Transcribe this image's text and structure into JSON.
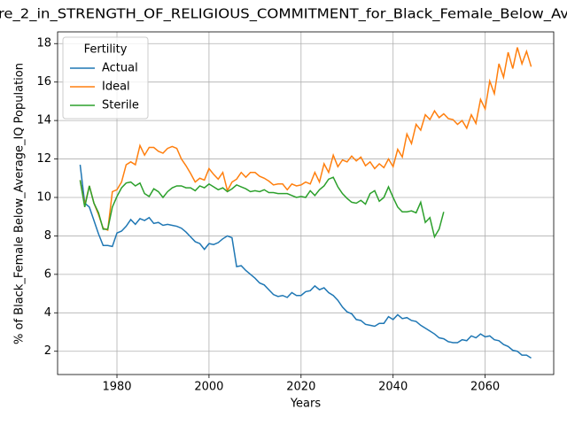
{
  "chart_data": {
    "type": "line",
    "title": "re_2_in_STRENGTH_OF_RELIGIOUS_COMMITMENT_for_Black_Female_Below_Av",
    "xlabel": "Years",
    "ylabel": "% of Black_Female Below_Average_IQ Population",
    "x": [
      1972,
      1973,
      1974,
      1975,
      1976,
      1977,
      1978,
      1979,
      1980,
      1981,
      1982,
      1983,
      1984,
      1985,
      1986,
      1987,
      1988,
      1989,
      1990,
      1991,
      1992,
      1993,
      1994,
      1995,
      1996,
      1997,
      1998,
      1999,
      2000,
      2001,
      2002,
      2003,
      2004,
      2005,
      2006,
      2007,
      2008,
      2009,
      2010,
      2011,
      2012,
      2013,
      2014,
      2015,
      2016,
      2017,
      2018,
      2019,
      2020,
      2021,
      2022,
      2023,
      2024,
      2025,
      2026,
      2027,
      2028,
      2029,
      2030,
      2031,
      2032,
      2033,
      2034,
      2035,
      2036,
      2037,
      2038,
      2039,
      2040,
      2041,
      2042,
      2043,
      2044,
      2045,
      2046,
      2047,
      2048,
      2049,
      2050,
      2051,
      2052,
      2053,
      2054,
      2055,
      2056,
      2057,
      2058,
      2059,
      2060,
      2061,
      2062,
      2063,
      2064,
      2065,
      2066,
      2067,
      2068,
      2069,
      2070
    ],
    "series": [
      {
        "name": "Actual",
        "color": "#1f77b4",
        "values": [
          11.7,
          9.7,
          9.5,
          8.8,
          8.1,
          7.5,
          7.5,
          7.45,
          8.15,
          8.25,
          8.5,
          8.85,
          8.6,
          8.9,
          8.8,
          8.95,
          8.65,
          8.7,
          8.55,
          8.6,
          8.55,
          8.5,
          8.4,
          8.2,
          7.95,
          7.7,
          7.6,
          7.3,
          7.6,
          7.55,
          7.65,
          7.85,
          8.0,
          7.9,
          6.4,
          6.45,
          6.2,
          6.0,
          5.8,
          5.55,
          5.45,
          5.2,
          4.95,
          4.85,
          4.9,
          4.8,
          5.05,
          4.9,
          4.9,
          5.1,
          5.15,
          5.4,
          5.2,
          5.3,
          5.05,
          4.9,
          4.65,
          4.3,
          4.05,
          3.95,
          3.65,
          3.6,
          3.4,
          3.35,
          3.3,
          3.45,
          3.45,
          3.8,
          3.65,
          3.9,
          3.7,
          3.75,
          3.6,
          3.55,
          3.35,
          3.2,
          3.05,
          2.9,
          2.7,
          2.65,
          2.5,
          2.45,
          2.45,
          2.6,
          2.55,
          2.8,
          2.7,
          2.9,
          2.75,
          2.8,
          2.6,
          2.55,
          2.35,
          2.25,
          2.05,
          2.0,
          1.8,
          1.8,
          1.65
        ]
      },
      {
        "name": "Ideal",
        "color": "#ff7f0e",
        "values": [
          10.9,
          9.6,
          10.6,
          9.7,
          9.1,
          8.4,
          8.3,
          10.3,
          10.4,
          10.8,
          11.7,
          11.85,
          11.7,
          12.7,
          12.2,
          12.6,
          12.6,
          12.4,
          12.3,
          12.55,
          12.65,
          12.55,
          12.0,
          11.65,
          11.25,
          10.8,
          11.0,
          10.9,
          11.5,
          11.2,
          10.95,
          11.3,
          10.35,
          10.8,
          10.95,
          11.3,
          11.05,
          11.3,
          11.3,
          11.1,
          11.0,
          10.85,
          10.65,
          10.7,
          10.7,
          10.4,
          10.7,
          10.6,
          10.65,
          10.8,
          10.7,
          11.3,
          10.8,
          11.75,
          11.3,
          12.2,
          11.6,
          11.95,
          11.85,
          12.15,
          11.9,
          12.1,
          11.65,
          11.85,
          11.5,
          11.75,
          11.55,
          12.0,
          11.6,
          12.5,
          12.1,
          13.3,
          12.8,
          13.8,
          13.5,
          14.3,
          14.05,
          14.5,
          14.15,
          14.35,
          14.1,
          14.05,
          13.8,
          14.0,
          13.6,
          14.3,
          13.85,
          15.1,
          14.6,
          16.05,
          15.4,
          16.95,
          16.25,
          17.55,
          16.7,
          17.8,
          16.95,
          17.6,
          16.8
        ]
      },
      {
        "name": "Sterile",
        "color": "#2ca02c",
        "values": [
          10.9,
          9.5,
          10.6,
          9.7,
          9.2,
          8.35,
          8.35,
          9.5,
          10.05,
          10.5,
          10.75,
          10.8,
          10.6,
          10.75,
          10.2,
          10.05,
          10.45,
          10.3,
          10.0,
          10.3,
          10.5,
          10.6,
          10.6,
          10.5,
          10.5,
          10.35,
          10.6,
          10.5,
          10.7,
          10.55,
          10.4,
          10.5,
          10.3,
          10.45,
          10.65,
          10.55,
          10.45,
          10.3,
          10.35,
          10.3,
          10.4,
          10.25,
          10.25,
          10.2,
          10.2,
          10.2,
          10.1,
          10.0,
          10.05,
          10.0,
          10.35,
          10.1,
          10.4,
          10.6,
          10.95,
          11.05,
          10.55,
          10.2,
          9.95,
          9.75,
          9.7,
          9.85,
          9.65,
          10.2,
          10.35,
          9.8,
          10.0,
          10.55,
          10.0,
          9.5,
          9.25,
          9.25,
          9.3,
          9.2,
          9.75,
          8.7,
          8.95,
          7.95,
          8.35,
          9.25,
          null,
          null,
          null,
          null,
          null,
          null,
          null,
          null,
          null,
          null,
          null,
          null,
          null,
          null,
          null,
          null,
          null,
          null,
          null
        ]
      }
    ],
    "xlim": [
      1967.1,
      2074.9
    ],
    "ylim": [
      0.79,
      18.61
    ],
    "xticks": [
      1980,
      2000,
      2020,
      2040,
      2060
    ],
    "yticks": [
      2,
      4,
      6,
      8,
      10,
      12,
      14,
      16,
      18
    ],
    "grid": true,
    "legend": {
      "title": "Fertility",
      "loc": "upper left"
    }
  }
}
